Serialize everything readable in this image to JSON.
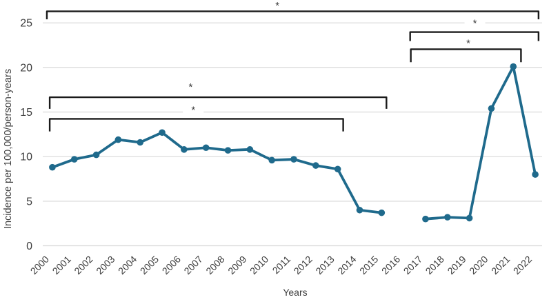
{
  "figure": {
    "background": "#ffffff",
    "description": "Line chart of incidence per 100,000/person-years from 2000 to 2022 with significance brackets"
  },
  "chart_data": {
    "type": "line",
    "title": "",
    "xlabel": "Years",
    "ylabel": "Incidence per 100,000/person-years",
    "categories": [
      "2000",
      "2001",
      "2002",
      "2003",
      "2004",
      "2005",
      "2006",
      "2007",
      "2008",
      "2009",
      "2010",
      "2011",
      "2012",
      "2013",
      "2014",
      "2015",
      "2016",
      "2017",
      "2018",
      "2019",
      "2020",
      "2021",
      "2022"
    ],
    "series": [
      {
        "name": "Incidence per 100,000/person-years",
        "color": "#1f6a8c",
        "values": [
          8.8,
          9.7,
          10.2,
          11.9,
          11.6,
          12.7,
          10.8,
          11.0,
          10.7,
          10.8,
          9.6,
          9.7,
          9.0,
          8.6,
          4.0,
          3.7,
          null,
          3.0,
          3.2,
          3.1,
          15.4,
          20.1,
          8.0
        ]
      }
    ],
    "yticks": [
      0,
      5,
      10,
      15,
      20,
      25
    ],
    "ylim": [
      0,
      27.57
    ],
    "grid": "horizontal",
    "gridline_color": "#d9d9d9",
    "marker": "circle",
    "legend": "none",
    "significance_brackets": [
      {
        "label": "*",
        "x1_idx": -0.25,
        "x2_idx": 22.15,
        "y_value": 26.3,
        "drop": 0.9,
        "star_x_idx": 10.25,
        "star_y_value": 27.05
      },
      {
        "label": "*",
        "x1_idx": -0.12,
        "x2_idx": 15.22,
        "y_value": 16.66,
        "drop": 1.3,
        "star_x_idx": 6.3,
        "star_y_value": 17.95
      },
      {
        "label": "*",
        "x1_idx": -0.12,
        "x2_idx": 13.25,
        "y_value": 14.23,
        "drop": 1.4,
        "star_x_idx": 6.42,
        "star_y_value": 15.35
      },
      {
        "label": "*",
        "x1_idx": 16.3,
        "x2_idx": 22.15,
        "y_value": 23.97,
        "drop": 1.0,
        "star_x_idx": 19.25,
        "star_y_value": 25.1
      },
      {
        "label": "*",
        "x1_idx": 16.33,
        "x2_idx": 21.35,
        "y_value": 22.04,
        "drop": 1.45,
        "star_x_idx": 18.95,
        "star_y_value": 22.85
      }
    ],
    "colors": {
      "line": "#1f6a8c",
      "bracket": "#1a1a1a",
      "text": "#3d3d3d",
      "gridline": "#d9d9d9",
      "background": "#ffffff"
    }
  }
}
